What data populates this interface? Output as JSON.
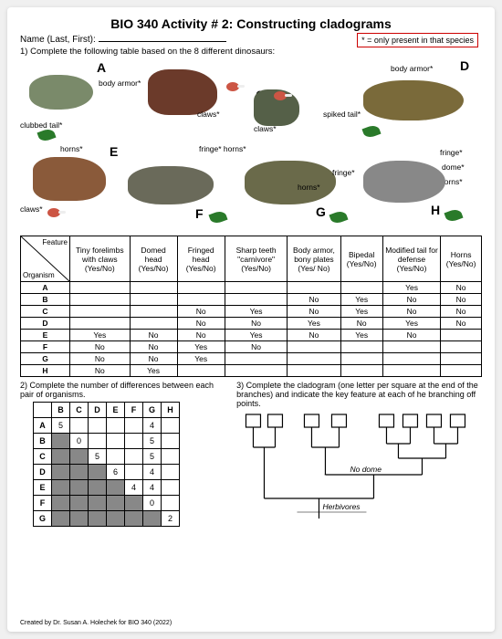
{
  "title": "BIO 340 Activity # 2: Constructing cladograms",
  "name_label": "Name (Last, First):",
  "instruction1": "1) Complete the following table based on the 8 different dinosaurs:",
  "legend": "* = only present in that species",
  "diagram_labels": {
    "body_armor": "body armor*",
    "clubbed_tail": "clubbed tail*",
    "horns": "horns*",
    "claws": "claws*",
    "spiked_tail": "spiked tail*",
    "fringe_horns": "fringe* horns*",
    "fringe": "fringe*",
    "dome": "dome*",
    "body_armor2": "body armor*"
  },
  "letters": [
    "A",
    "B",
    "C",
    "D",
    "E",
    "F",
    "G",
    "H"
  ],
  "feature_table": {
    "corner_top": "Feature",
    "corner_bottom": "Organism",
    "columns": [
      "Tiny forelimbs with claws (Yes/No)",
      "Domed head (Yes/No)",
      "Fringed head (Yes/No)",
      "Sharp teeth \"carnivore\" (Yes/No)",
      "Body armor, bony plates (Yes/ No)",
      "Bipedal (Yes/No)",
      "Modified tail for defense (Yes/No)",
      "Horns (Yes/No)"
    ],
    "rows": [
      {
        "org": "A",
        "cells": [
          "",
          "",
          "",
          "",
          "",
          "",
          "Yes",
          "No"
        ]
      },
      {
        "org": "B",
        "cells": [
          "",
          "",
          "",
          "",
          "No",
          "Yes",
          "No",
          "No"
        ]
      },
      {
        "org": "C",
        "cells": [
          "",
          "",
          "No",
          "Yes",
          "No",
          "Yes",
          "No",
          "No"
        ]
      },
      {
        "org": "D",
        "cells": [
          "",
          "",
          "No",
          "No",
          "Yes",
          "No",
          "Yes",
          "No"
        ]
      },
      {
        "org": "E",
        "cells": [
          "Yes",
          "No",
          "No",
          "Yes",
          "No",
          "Yes",
          "No",
          ""
        ]
      },
      {
        "org": "F",
        "cells": [
          "No",
          "No",
          "Yes",
          "No",
          "",
          "",
          "",
          ""
        ]
      },
      {
        "org": "G",
        "cells": [
          "No",
          "No",
          "Yes",
          "",
          "",
          "",
          "",
          ""
        ]
      },
      {
        "org": "H",
        "cells": [
          "No",
          "Yes",
          "",
          "",
          "",
          "",
          "",
          ""
        ]
      }
    ]
  },
  "q2_text": "2) Complete the number of differences between each pair of organisms.",
  "diff_table": {
    "cols": [
      "B",
      "C",
      "D",
      "E",
      "F",
      "G",
      "H"
    ],
    "rows": [
      "A",
      "B",
      "C",
      "D",
      "E",
      "F",
      "G"
    ],
    "cells": [
      [
        "5",
        "",
        "",
        "",
        "",
        "4",
        ""
      ],
      [
        "s",
        "0",
        "",
        "",
        "",
        "5",
        ""
      ],
      [
        "s",
        "s",
        "5",
        "",
        "",
        "5",
        ""
      ],
      [
        "s",
        "s",
        "s",
        "6",
        "",
        "4",
        ""
      ],
      [
        "s",
        "s",
        "s",
        "s",
        "4",
        "4",
        ""
      ],
      [
        "s",
        "s",
        "s",
        "s",
        "s",
        "0",
        ""
      ],
      [
        "s",
        "s",
        "s",
        "s",
        "s",
        "s",
        "2"
      ]
    ]
  },
  "q3_text": "3) Complete the cladogram (one letter per square at the end of the branches) and indicate the key feature at each of he branching off points.",
  "clado_labels": {
    "no_dome": "No dome",
    "herbivores": "Herbivores"
  },
  "credit": "Created by Dr. Susan A. Holechek for BIO 340 (2022)",
  "colors": {
    "page_bg": "#ffffff",
    "outer_bg": "#f0f0f0",
    "border": "#000000",
    "legend_border": "#c00",
    "shade": "#888",
    "leaf": "#2a7a2a",
    "meat": "#c54",
    "dinoA": "#7a8a6a",
    "dinoB": "#6b3a2a",
    "dinoC": "#556048",
    "dinoD": "#7a6a3a",
    "dinoE": "#8a5a3a",
    "dinoF": "#6a6a5a",
    "dinoG": "#6a6a4a",
    "dinoH": "#888"
  }
}
